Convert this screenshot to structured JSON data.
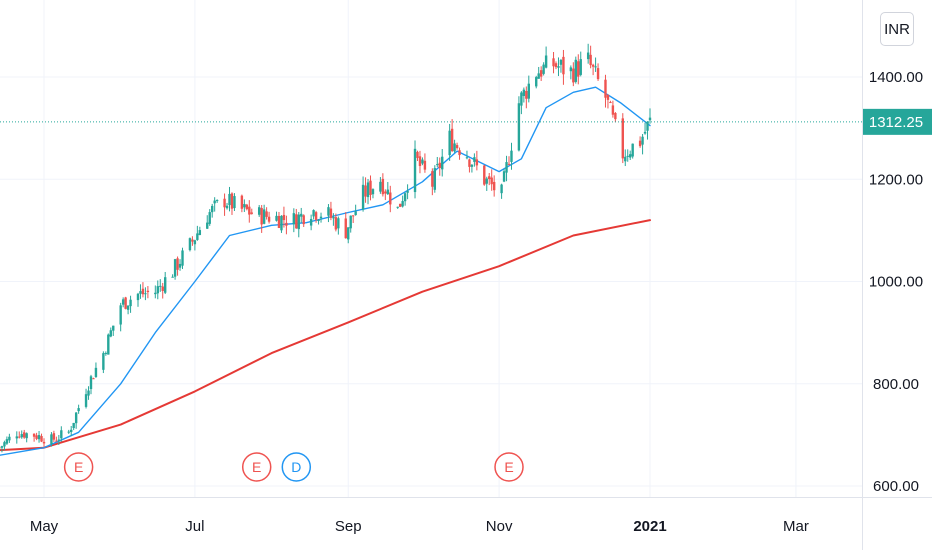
{
  "currency": {
    "label": "INR"
  },
  "chart_data": {
    "type": "candlestick",
    "y_axis": {
      "ticks": [
        {
          "value": 600,
          "label": "600.00"
        },
        {
          "value": 800,
          "label": "800.00"
        },
        {
          "value": 1000,
          "label": "1000.00"
        },
        {
          "value": 1200,
          "label": "1200.00"
        },
        {
          "value": 1400,
          "label": "1400.00"
        }
      ]
    },
    "x_axis": {
      "ticks": [
        {
          "date": "2020-05-01",
          "label": "May",
          "bold": false
        },
        {
          "date": "2020-07-01",
          "label": "Jul",
          "bold": false
        },
        {
          "date": "2020-09-01",
          "label": "Sep",
          "bold": false
        },
        {
          "date": "2020-11-01",
          "label": "Nov",
          "bold": false
        },
        {
          "date": "2021-01-01",
          "label": "2021",
          "bold": true
        },
        {
          "date": "2021-03-01",
          "label": "Mar",
          "bold": false
        }
      ]
    },
    "last_price": {
      "value": 1312.25,
      "label": "1312.25",
      "color": "#26a69a"
    },
    "colors": {
      "up": "#26a69a",
      "down": "#ef5350",
      "ma_short": "#2196f3",
      "ma_long": "#e53935"
    },
    "ohlc_anchors": [
      {
        "date": "2020-04-13",
        "close": 675
      },
      {
        "date": "2020-04-20",
        "close": 705
      },
      {
        "date": "2020-04-27",
        "close": 700
      },
      {
        "date": "2020-05-04",
        "close": 690
      },
      {
        "date": "2020-05-11",
        "close": 705
      },
      {
        "date": "2020-05-18",
        "close": 790
      },
      {
        "date": "2020-05-25",
        "close": 860
      },
      {
        "date": "2020-06-01",
        "close": 955
      },
      {
        "date": "2020-06-08",
        "close": 975
      },
      {
        "date": "2020-06-15",
        "close": 980
      },
      {
        "date": "2020-06-22",
        "close": 1020
      },
      {
        "date": "2020-06-29",
        "close": 1070
      },
      {
        "date": "2020-07-06",
        "close": 1130
      },
      {
        "date": "2020-07-13",
        "close": 1160
      },
      {
        "date": "2020-07-20",
        "close": 1140
      },
      {
        "date": "2020-07-27",
        "close": 1130
      },
      {
        "date": "2020-08-03",
        "close": 1125
      },
      {
        "date": "2020-08-10",
        "close": 1120
      },
      {
        "date": "2020-08-17",
        "close": 1140
      },
      {
        "date": "2020-08-24",
        "close": 1130
      },
      {
        "date": "2020-08-31",
        "close": 1100
      },
      {
        "date": "2020-09-07",
        "close": 1170
      },
      {
        "date": "2020-09-14",
        "close": 1200
      },
      {
        "date": "2020-09-21",
        "close": 1140
      },
      {
        "date": "2020-09-28",
        "close": 1240
      },
      {
        "date": "2020-10-05",
        "close": 1190
      },
      {
        "date": "2020-10-12",
        "close": 1280
      },
      {
        "date": "2020-10-19",
        "close": 1250
      },
      {
        "date": "2020-10-26",
        "close": 1200
      },
      {
        "date": "2020-11-02",
        "close": 1170
      },
      {
        "date": "2020-11-09",
        "close": 1350
      },
      {
        "date": "2020-11-16",
        "close": 1410
      },
      {
        "date": "2020-11-23",
        "close": 1425
      },
      {
        "date": "2020-11-30",
        "close": 1410
      },
      {
        "date": "2020-12-07",
        "close": 1430
      },
      {
        "date": "2020-12-14",
        "close": 1360
      },
      {
        "date": "2020-12-21",
        "close": 1250
      },
      {
        "date": "2020-12-28",
        "close": 1275
      },
      {
        "date": "2021-01-01",
        "close": 1312.25
      }
    ],
    "ma_short": [
      {
        "date": "2020-04-13",
        "value": 660
      },
      {
        "date": "2020-05-01",
        "value": 675
      },
      {
        "date": "2020-05-15",
        "value": 705
      },
      {
        "date": "2020-06-01",
        "value": 800
      },
      {
        "date": "2020-06-15",
        "value": 900
      },
      {
        "date": "2020-07-01",
        "value": 1000
      },
      {
        "date": "2020-07-15",
        "value": 1090
      },
      {
        "date": "2020-08-01",
        "value": 1110
      },
      {
        "date": "2020-08-15",
        "value": 1115
      },
      {
        "date": "2020-09-01",
        "value": 1135
      },
      {
        "date": "2020-09-15",
        "value": 1150
      },
      {
        "date": "2020-10-01",
        "value": 1195
      },
      {
        "date": "2020-10-15",
        "value": 1255
      },
      {
        "date": "2020-11-01",
        "value": 1215
      },
      {
        "date": "2020-11-10",
        "value": 1240
      },
      {
        "date": "2020-11-20",
        "value": 1340
      },
      {
        "date": "2020-12-01",
        "value": 1370
      },
      {
        "date": "2020-12-10",
        "value": 1380
      },
      {
        "date": "2020-12-20",
        "value": 1350
      },
      {
        "date": "2021-01-01",
        "value": 1305
      }
    ],
    "ma_long": [
      {
        "date": "2020-04-13",
        "value": 670
      },
      {
        "date": "2020-05-01",
        "value": 675
      },
      {
        "date": "2020-06-01",
        "value": 720
      },
      {
        "date": "2020-07-01",
        "value": 785
      },
      {
        "date": "2020-08-01",
        "value": 860
      },
      {
        "date": "2020-09-01",
        "value": 920
      },
      {
        "date": "2020-10-01",
        "value": 980
      },
      {
        "date": "2020-11-01",
        "value": 1030
      },
      {
        "date": "2020-12-01",
        "value": 1090
      },
      {
        "date": "2021-01-01",
        "value": 1120
      }
    ],
    "event_markers": [
      {
        "date": "2020-05-15",
        "label": "E",
        "color": "#ef5350"
      },
      {
        "date": "2020-07-26",
        "label": "E",
        "color": "#ef5350"
      },
      {
        "date": "2020-08-11",
        "label": "D",
        "color": "#2196f3"
      },
      {
        "date": "2020-11-05",
        "label": "E",
        "color": "#ef5350"
      }
    ]
  }
}
